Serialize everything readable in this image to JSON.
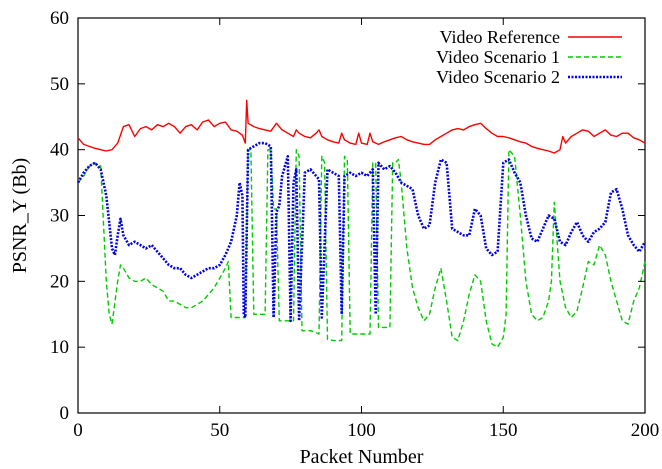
{
  "chart_data": {
    "type": "line",
    "title": "",
    "xlabel": "Packet Number",
    "ylabel": "PSNR_Y (Bb)",
    "xlim": [
      0,
      200
    ],
    "ylim": [
      0,
      60
    ],
    "xticks": [
      0,
      50,
      100,
      150,
      200
    ],
    "yticks": [
      0,
      10,
      20,
      30,
      40,
      50,
      60
    ],
    "grid": false,
    "legend": "top-right",
    "series": [
      {
        "name": "Video Reference",
        "color": "#ff0000",
        "style": "solid",
        "x": [
          0,
          2,
          4,
          6,
          8,
          10,
          12,
          14,
          16,
          18,
          20,
          22,
          24,
          26,
          28,
          30,
          32,
          34,
          36,
          38,
          40,
          42,
          44,
          46,
          48,
          50,
          52,
          54,
          56,
          58,
          59,
          59.5,
          60,
          62,
          64,
          66,
          68,
          70,
          72,
          74,
          76,
          77,
          78,
          80,
          82,
          84,
          85,
          86,
          88,
          90,
          92,
          93,
          94,
          96,
          98,
          99,
          100,
          102,
          103,
          104,
          106,
          108,
          110,
          112,
          114,
          116,
          118,
          120,
          122,
          124,
          126,
          128,
          130,
          132,
          134,
          136,
          138,
          140,
          142,
          144,
          146,
          148,
          150,
          152,
          154,
          156,
          158,
          160,
          162,
          164,
          166,
          168,
          170,
          171,
          172,
          174,
          176,
          178,
          180,
          182,
          184,
          186,
          188,
          190,
          192,
          194,
          196,
          198,
          200
        ],
        "y": [
          41.8,
          40.8,
          40.5,
          40.2,
          40.0,
          39.8,
          40.0,
          41.0,
          43.5,
          43.8,
          42.0,
          43.2,
          43.5,
          43.0,
          43.8,
          43.5,
          44.0,
          43.5,
          42.5,
          43.5,
          43.8,
          43.0,
          44.2,
          44.5,
          43.5,
          44.0,
          44.2,
          43.0,
          42.8,
          42.2,
          41.0,
          47.5,
          44.0,
          43.5,
          43.2,
          43.0,
          42.8,
          44.0,
          43.0,
          42.5,
          42.0,
          43.0,
          42.5,
          42.0,
          41.8,
          42.5,
          43.0,
          42.0,
          41.5,
          41.2,
          41.0,
          42.5,
          41.5,
          41.0,
          40.8,
          42.5,
          41.0,
          40.8,
          42.5,
          41.2,
          40.8,
          41.2,
          41.5,
          41.8,
          42.0,
          41.5,
          41.2,
          41.0,
          40.8,
          40.8,
          41.5,
          42.0,
          42.5,
          43.0,
          43.2,
          43.0,
          43.5,
          43.8,
          44.0,
          43.2,
          42.5,
          42.0,
          42.0,
          41.8,
          41.5,
          41.2,
          41.0,
          40.5,
          40.2,
          40.0,
          39.8,
          39.5,
          40.0,
          42.0,
          41.0,
          42.0,
          42.5,
          43.0,
          42.8,
          42.0,
          42.5,
          43.0,
          42.2,
          42.0,
          42.5,
          42.5,
          41.8,
          41.5,
          41.0
        ]
      },
      {
        "name": "Video Scenario 1",
        "color": "#00cc00",
        "style": "dashed",
        "x": [
          0,
          2,
          4,
          6,
          8,
          10,
          11,
          12,
          14,
          15,
          16,
          18,
          20,
          22,
          24,
          26,
          28,
          30,
          32,
          34,
          36,
          38,
          40,
          42,
          44,
          46,
          48,
          50,
          52,
          53,
          54,
          58,
          59,
          60,
          61,
          62,
          64,
          66,
          67,
          68,
          69,
          70,
          71,
          72,
          74,
          76,
          77,
          78,
          79,
          80,
          82,
          84,
          85,
          86,
          87,
          88,
          90,
          92,
          93,
          94,
          95,
          96,
          98,
          100,
          102,
          103,
          104,
          105,
          106,
          108,
          110,
          111,
          112,
          113,
          114,
          116,
          118,
          120,
          122,
          124,
          126,
          128,
          130,
          132,
          134,
          136,
          138,
          140,
          142,
          144,
          146,
          148,
          150,
          151,
          152,
          154,
          156,
          158,
          160,
          162,
          164,
          166,
          167,
          168,
          170,
          172,
          174,
          176,
          178,
          180,
          182,
          184,
          186,
          188,
          190,
          192,
          194,
          196,
          198,
          200
        ],
        "y": [
          35.0,
          36.0,
          37.5,
          38.0,
          37.5,
          20.0,
          15.0,
          13.5,
          20.0,
          22.5,
          22.0,
          20.5,
          20.0,
          20.0,
          20.5,
          19.5,
          19.0,
          18.5,
          17.0,
          17.0,
          16.5,
          16.0,
          16.0,
          16.5,
          17.0,
          18.0,
          19.0,
          20.5,
          22.0,
          23.0,
          14.5,
          14.5,
          14.5,
          40.0,
          40.0,
          15.0,
          15.0,
          15.0,
          40.0,
          40.0,
          31.0,
          31.0,
          14.0,
          14.0,
          14.0,
          14.0,
          40.0,
          39.0,
          12.5,
          12.5,
          12.5,
          12.2,
          12.0,
          39.0,
          38.0,
          11.2,
          11.0,
          11.0,
          11.0,
          39.0,
          38.5,
          12.0,
          12.0,
          12.0,
          12.0,
          12.0,
          38.0,
          38.0,
          13.0,
          13.0,
          13.0,
          38.0,
          38.0,
          38.5,
          35.0,
          25.0,
          19.0,
          16.0,
          14.0,
          15.0,
          19.0,
          22.0,
          17.0,
          11.5,
          11.0,
          14.0,
          18.0,
          21.0,
          20.0,
          14.0,
          10.5,
          10.0,
          11.5,
          15.0,
          40.0,
          39.0,
          30.0,
          20.0,
          15.0,
          14.0,
          14.5,
          17.0,
          20.0,
          32.0,
          20.0,
          16.0,
          14.5,
          15.5,
          19.0,
          23.0,
          22.5,
          25.5,
          24.0,
          20.0,
          17.0,
          14.0,
          13.5,
          17.0,
          19.0,
          23.0
        ]
      },
      {
        "name": "Video Scenario 2",
        "color": "#0000ee",
        "style": "dotted",
        "x": [
          0,
          2,
          4,
          6,
          8,
          10,
          12,
          13,
          14,
          15,
          16,
          18,
          20,
          22,
          24,
          26,
          28,
          30,
          32,
          34,
          36,
          38,
          40,
          42,
          44,
          46,
          48,
          50,
          52,
          54,
          56,
          57,
          58,
          58.5,
          59,
          60,
          62,
          64,
          66,
          68,
          69,
          70,
          71,
          72,
          74,
          75,
          76,
          77,
          78,
          80,
          82,
          84,
          85,
          86,
          88,
          90,
          92,
          93,
          94,
          96,
          98,
          100,
          102,
          104,
          105,
          106,
          108,
          110,
          112,
          114,
          116,
          118,
          120,
          122,
          124,
          126,
          128,
          130,
          132,
          134,
          136,
          138,
          140,
          142,
          144,
          146,
          148,
          150,
          152,
          154,
          156,
          158,
          160,
          162,
          164,
          166,
          168,
          170,
          172,
          174,
          176,
          178,
          180,
          182,
          184,
          186,
          188,
          190,
          192,
          194,
          196,
          198,
          200
        ],
        "y": [
          35.0,
          36.5,
          37.5,
          38.0,
          37.0,
          33.0,
          25.0,
          24.0,
          27.0,
          29.5,
          27.0,
          25.5,
          26.0,
          25.5,
          25.0,
          25.5,
          24.5,
          23.5,
          22.5,
          22.0,
          22.0,
          21.0,
          20.5,
          21.0,
          21.5,
          22.0,
          22.0,
          22.5,
          24.0,
          26.0,
          30.0,
          35.0,
          33.0,
          15.0,
          14.5,
          40.0,
          40.5,
          41.0,
          41.0,
          40.5,
          14.5,
          30.5,
          31.5,
          36.0,
          39.0,
          14.0,
          35.0,
          37.0,
          14.0,
          36.5,
          37.0,
          36.0,
          35.5,
          14.5,
          37.0,
          36.5,
          36.0,
          15.0,
          36.0,
          36.5,
          36.0,
          36.5,
          36.0,
          37.0,
          15.0,
          38.0,
          37.0,
          37.5,
          36.5,
          35.0,
          34.5,
          34.0,
          30.0,
          28.0,
          28.5,
          35.0,
          38.5,
          38.0,
          28.0,
          27.5,
          27.0,
          27.0,
          31.0,
          30.0,
          25.0,
          24.0,
          24.5,
          38.0,
          38.5,
          36.5,
          35.0,
          30.0,
          26.5,
          26.0,
          28.0,
          30.0,
          29.5,
          26.0,
          25.5,
          27.5,
          29.0,
          27.0,
          26.0,
          27.5,
          28.0,
          29.0,
          33.5,
          34.0,
          31.0,
          27.0,
          25.5,
          24.5,
          26.0
        ]
      }
    ]
  }
}
